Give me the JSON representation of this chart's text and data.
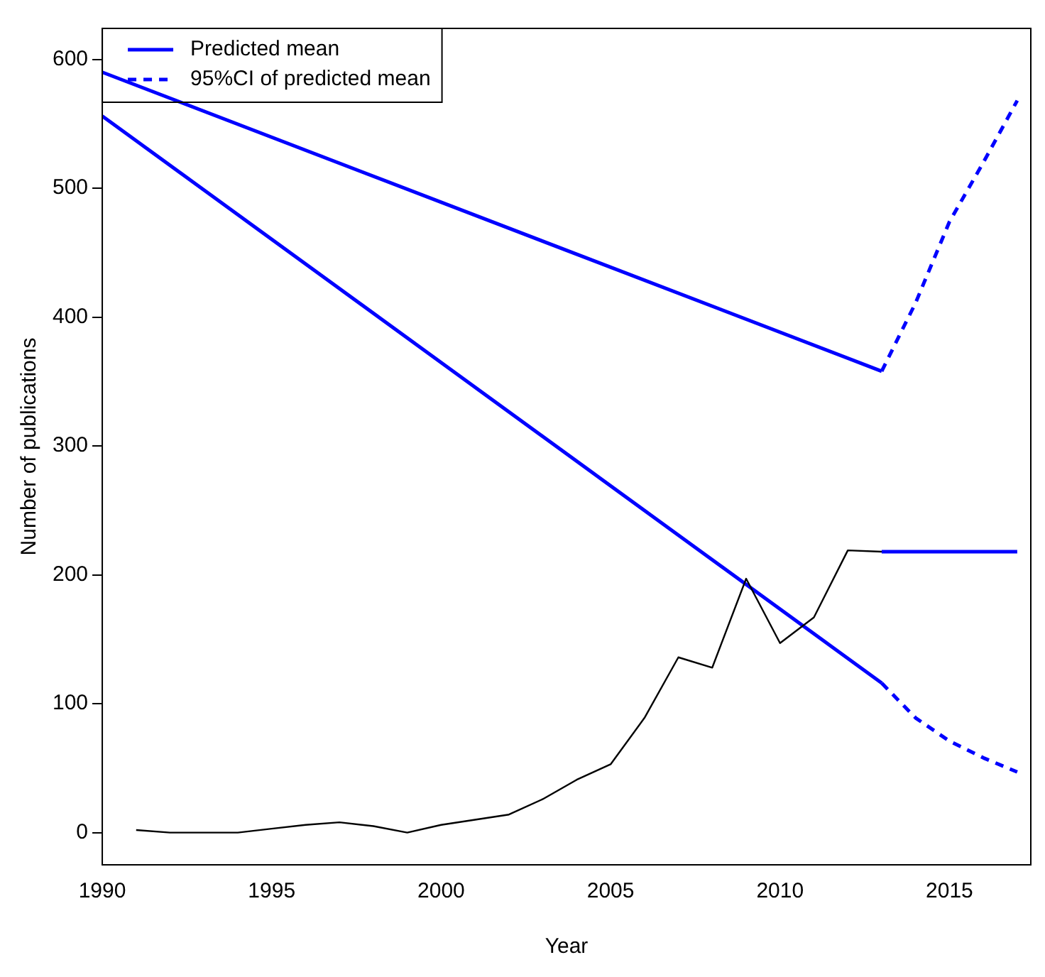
{
  "chart_data": {
    "type": "line",
    "xlabel": "Year",
    "ylabel": "Number of publications",
    "xlim": [
      1990,
      2017.4
    ],
    "xticks": [
      1990,
      1995,
      2000,
      2005,
      2010,
      2015
    ],
    "ylim": [
      -25,
      624
    ],
    "yticks": [
      0,
      100,
      200,
      300,
      400,
      500,
      600
    ],
    "grid": false,
    "legend": "top left",
    "marker": "none",
    "series": [
      {
        "color": "#000000",
        "x": [
          1991,
          1992,
          1993,
          1994,
          1995,
          1996,
          1997,
          1998,
          1999,
          2000,
          2001,
          2002,
          2003,
          2004,
          2005,
          2006,
          2007,
          2008,
          2009,
          2010,
          2011,
          2012,
          2013
        ],
        "values": [
          2,
          0,
          0,
          0,
          3,
          6,
          8,
          5,
          0,
          6,
          10,
          14,
          26,
          41,
          53,
          89,
          136,
          128,
          197,
          147,
          167,
          219,
          218
        ]
      },
      {
        "name": "Predicted mean",
        "color": "#0000ff",
        "line_style": "solid",
        "x": [
          2013,
          2014,
          2015,
          2016,
          2017
        ],
        "values": [
          218,
          218,
          218,
          218,
          218
        ]
      },
      {
        "name": "95%CI of predicted mean",
        "color": "#0000ff",
        "line_style": "dashed",
        "x": [
          2013,
          2014,
          2015,
          2016,
          2017
        ],
        "values": [
          358,
          411,
          474,
          520,
          568
        ]
      },
      {
        "color": "#0000ff",
        "line_style": "dashed",
        "x": [
          2013,
          2014,
          2015,
          2016,
          2017
        ],
        "values": [
          116,
          89,
          71,
          58,
          47
        ]
      },
      {
        "color": "#0000ff",
        "line_style": "solid",
        "x": [
          1990,
          2013
        ],
        "values": [
          590,
          358
        ]
      },
      {
        "color": "#0000ff",
        "line_style": "solid",
        "x": [
          1990,
          2013
        ],
        "values": [
          556,
          116
        ]
      }
    ]
  }
}
